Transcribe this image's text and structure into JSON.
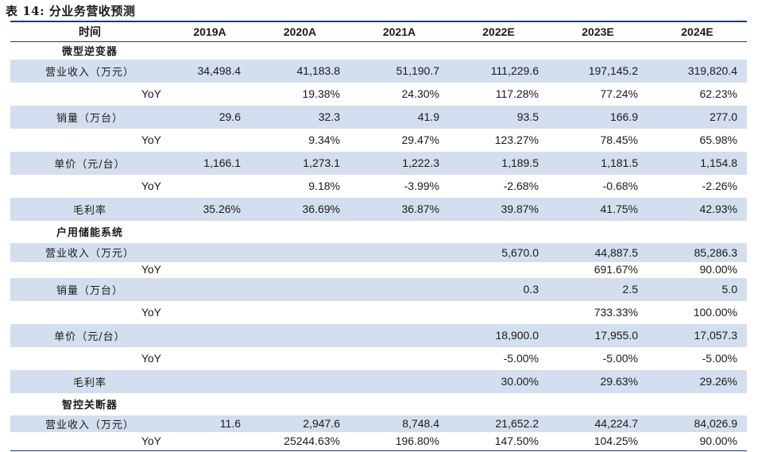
{
  "title": "表 14: 分业务营收预测",
  "header": [
    "时间",
    "2019A",
    "2020A",
    "2021A",
    "2022E",
    "2023E",
    "2024E"
  ],
  "rows": [
    {
      "type": "section",
      "label": "微型逆变器",
      "h": 22
    },
    {
      "type": "data",
      "label": "营业收入（万元）",
      "shade": true,
      "h": 29,
      "values": [
        "34,498.4",
        "41,183.8",
        "51,190.7",
        "111,229.6",
        "197,145.2",
        "319,820.4"
      ]
    },
    {
      "type": "yoy",
      "label": "YoY",
      "shade": false,
      "h": 29,
      "values": [
        "",
        "19.38%",
        "24.30%",
        "117.28%",
        "77.24%",
        "62.23%"
      ]
    },
    {
      "type": "data",
      "label": "销量（万台）",
      "shade": true,
      "h": 29,
      "values": [
        "29.6",
        "32.3",
        "41.9",
        "93.5",
        "166.9",
        "277.0"
      ]
    },
    {
      "type": "yoy",
      "label": "YoY",
      "shade": false,
      "h": 29,
      "values": [
        "",
        "9.34%",
        "29.47%",
        "123.27%",
        "78.45%",
        "65.98%"
      ]
    },
    {
      "type": "data",
      "label": "单价（元/台）",
      "shade": true,
      "h": 29,
      "values": [
        "1,166.1",
        "1,273.1",
        "1,222.3",
        "1,189.5",
        "1,181.5",
        "1,154.8"
      ]
    },
    {
      "type": "yoy",
      "label": "YoY",
      "shade": false,
      "h": 29,
      "values": [
        "",
        "9.18%",
        "-3.99%",
        "-2.68%",
        "-0.68%",
        "-2.26%"
      ]
    },
    {
      "type": "data",
      "label": "毛利率",
      "shade": true,
      "h": 29,
      "values": [
        "35.26%",
        "36.69%",
        "36.87%",
        "39.87%",
        "41.75%",
        "42.93%"
      ]
    },
    {
      "type": "section",
      "label": "户用储能系统",
      "h": 28
    },
    {
      "type": "data",
      "label": "营业收入（万元）",
      "shade": true,
      "h": 24,
      "values": [
        "",
        "",
        "",
        "5,670.0",
        "44,887.5",
        "85,286.3"
      ]
    },
    {
      "type": "yoy",
      "label": "YoY",
      "shade": false,
      "h": 20,
      "values": [
        "",
        "",
        "",
        "",
        "691.67%",
        "90.00%"
      ]
    },
    {
      "type": "data",
      "label": "销量（万台）",
      "shade": true,
      "h": 29,
      "values": [
        "",
        "",
        "",
        "0.3",
        "2.5",
        "5.0"
      ]
    },
    {
      "type": "yoy",
      "label": "YoY",
      "shade": false,
      "h": 29,
      "values": [
        "",
        "",
        "",
        "",
        "733.33%",
        "100.00%"
      ]
    },
    {
      "type": "data",
      "label": "单价（元/台）",
      "shade": true,
      "h": 29,
      "values": [
        "",
        "",
        "",
        "18,900.0",
        "17,955.0",
        "17,057.3"
      ]
    },
    {
      "type": "yoy",
      "label": "YoY",
      "shade": false,
      "h": 29,
      "values": [
        "",
        "",
        "",
        "-5.00%",
        "-5.00%",
        "-5.00%"
      ]
    },
    {
      "type": "data",
      "label": "毛利率",
      "shade": true,
      "h": 29,
      "values": [
        "",
        "",
        "",
        "30.00%",
        "29.63%",
        "29.26%"
      ]
    },
    {
      "type": "section",
      "label": "智控关断器",
      "h": 28
    },
    {
      "type": "data",
      "label": "营业收入（万元）",
      "shade": true,
      "h": 21,
      "values": [
        "11.6",
        "2,947.6",
        "8,748.4",
        "21,652.2",
        "44,224.7",
        "84,026.9"
      ]
    },
    {
      "type": "yoy",
      "label": "YoY",
      "shade": false,
      "h": 22,
      "values": [
        "",
        "25244.63%",
        "196.80%",
        "147.50%",
        "104.25%",
        "90.00%"
      ]
    }
  ]
}
